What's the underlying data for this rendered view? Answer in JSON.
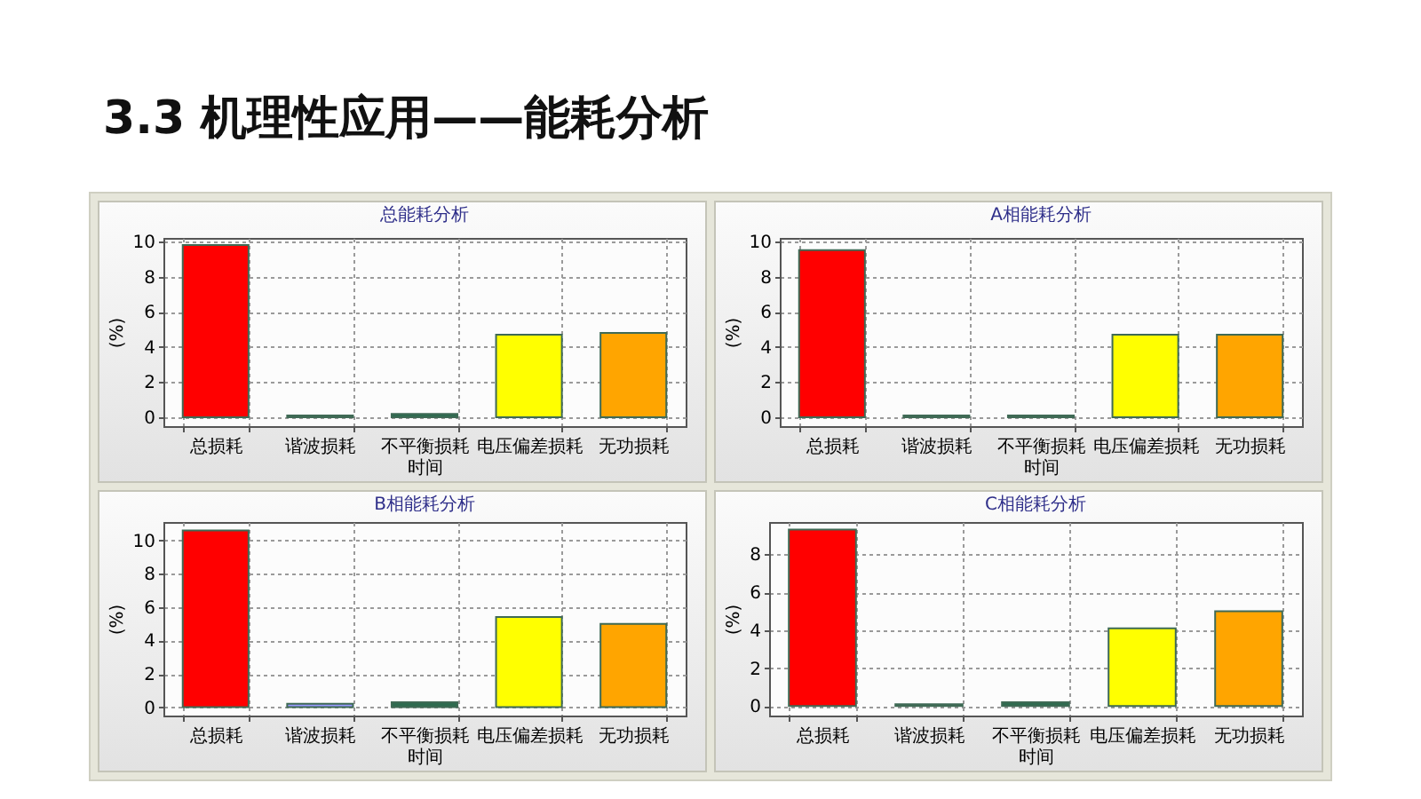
{
  "chart_data": [
    {
      "type": "other",
      "title": "3.3 机理性应用——能耗分析"
    },
    {
      "type": "bar",
      "title": "总能耗分析",
      "ylabel": "(%)",
      "categories": [
        "总损耗",
        "谐波损耗",
        "不平衡损耗时间",
        "电压偏差损耗",
        "无功损耗"
      ],
      "values": [
        9.8,
        0.1,
        0.2,
        4.7,
        4.8
      ],
      "colors": [
        "#ff0000",
        "#9999ff",
        "#2e6b4f",
        "#ffff00",
        "#ffa500"
      ],
      "ylim": [
        -0.5,
        10.2
      ],
      "yticks": [
        0,
        2,
        4,
        6,
        8,
        10
      ],
      "grid": true
    },
    {
      "type": "bar",
      "title": "A相能耗分析",
      "ylabel": "(%)",
      "categories": [
        "总损耗",
        "谐波损耗",
        "不平衡损耗时间",
        "电压偏差损耗",
        "无功损耗"
      ],
      "values": [
        9.5,
        0.1,
        0.1,
        4.7,
        4.7
      ],
      "colors": [
        "#ff0000",
        "#9999ff",
        "#66bb66",
        "#ffff00",
        "#ffa500"
      ],
      "ylim": [
        -0.5,
        10.2
      ],
      "yticks": [
        0,
        2,
        4,
        6,
        8,
        10
      ],
      "grid": true
    },
    {
      "type": "bar",
      "title": "B相能耗分析",
      "ylabel": "(%)",
      "categories": [
        "总损耗",
        "谐波损耗",
        "不平衡损耗时间",
        "电压偏差损耗",
        "无功损耗"
      ],
      "values": [
        10.6,
        0.2,
        0.3,
        5.4,
        5.0
      ],
      "colors": [
        "#ff0000",
        "#9999ff",
        "#2e6b4f",
        "#ffff00",
        "#ffa500"
      ],
      "ylim": [
        -0.5,
        11.1
      ],
      "yticks": [
        0,
        2,
        4,
        6,
        8,
        10
      ],
      "grid": true
    },
    {
      "type": "bar",
      "title": "C相能耗分析",
      "ylabel": "(%)",
      "categories": [
        "总损耗",
        "谐波损耗",
        "不平衡损耗时间",
        "电压偏差损耗",
        "无功损耗"
      ],
      "values": [
        9.3,
        0.1,
        0.2,
        4.1,
        5.0
      ],
      "colors": [
        "#ff0000",
        "#9999ff",
        "#2e6b4f",
        "#ffff00",
        "#ffa500"
      ],
      "ylim": [
        -0.5,
        9.7
      ],
      "yticks": [
        0,
        2,
        4,
        6,
        8
      ],
      "grid": true
    }
  ]
}
